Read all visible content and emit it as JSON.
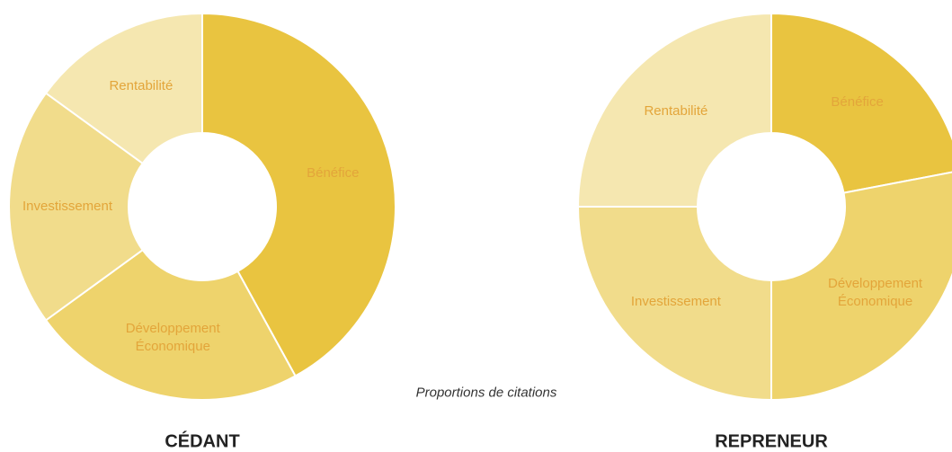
{
  "chart_data": [
    {
      "type": "pie",
      "title": "CÉDANT",
      "categories": [
        "Bénéfice",
        "Développement Économique",
        "Investissement",
        "Rentabilité"
      ],
      "values": [
        42,
        23,
        20,
        15
      ],
      "colors": [
        "#e9c440",
        "#eed36c",
        "#f1dc8b",
        "#f5e7b0"
      ]
    },
    {
      "type": "pie",
      "title": "REPRENEUR",
      "categories": [
        "Bénéfice",
        "Développement Économique",
        "Investissement",
        "Rentabilité"
      ],
      "values": [
        22,
        28,
        25,
        25
      ],
      "colors": [
        "#e9c440",
        "#eed36c",
        "#f1dc8b",
        "#f5e7b0"
      ]
    }
  ],
  "caption": "Proportions de citations"
}
